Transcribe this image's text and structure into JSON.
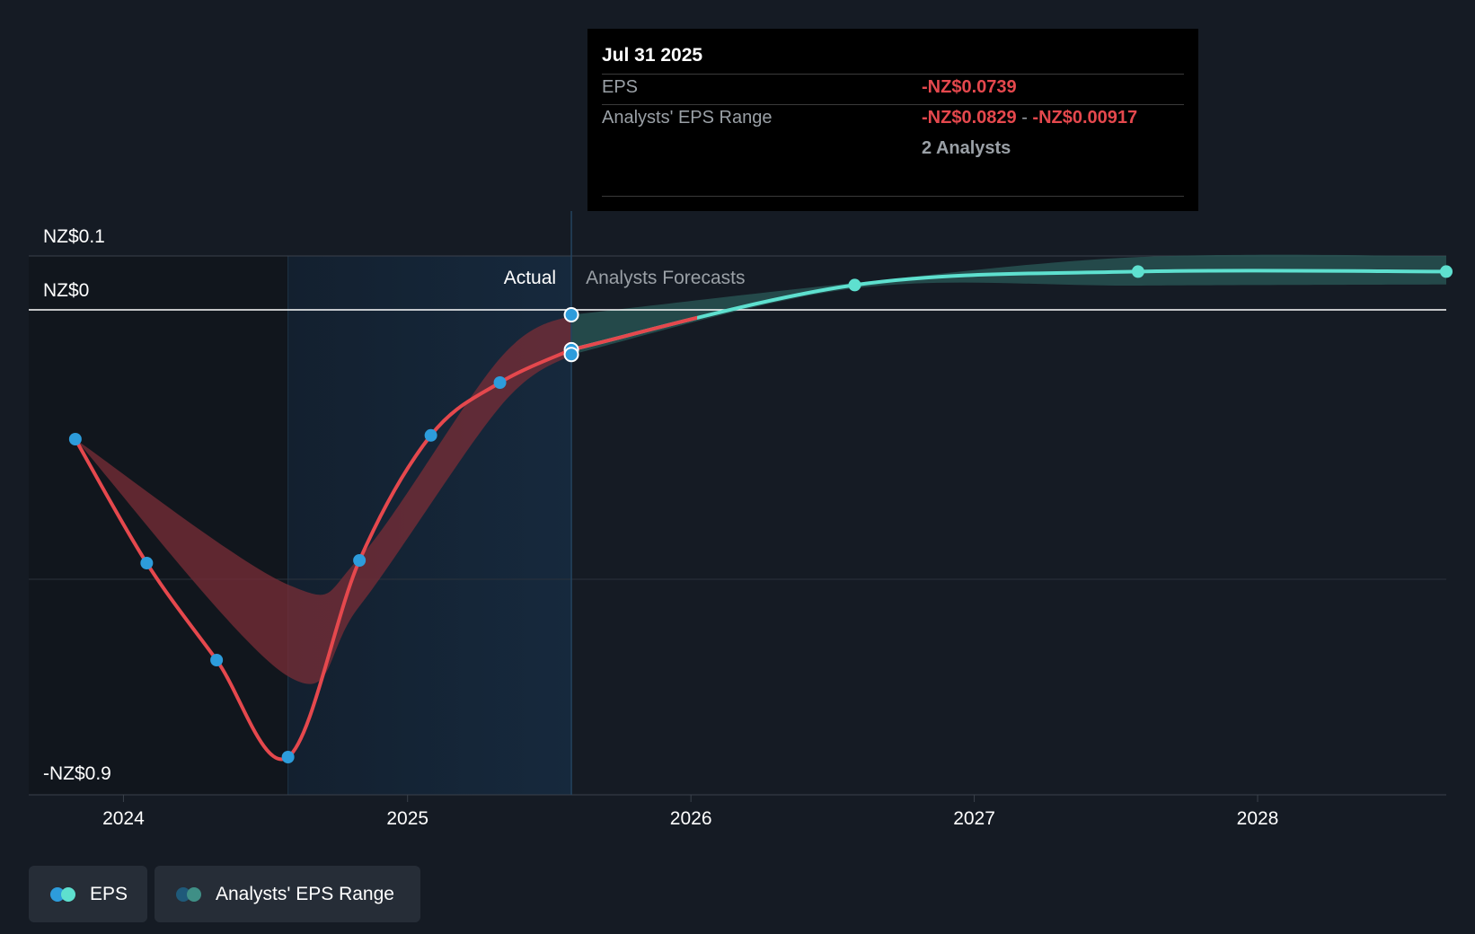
{
  "tooltip": {
    "date": "Jul 31 2025",
    "eps_label": "EPS",
    "eps_value": "-NZ$0.0739",
    "range_label": "Analysts' EPS Range",
    "range_low": "-NZ$0.0829",
    "range_sep": "-",
    "range_high": "-NZ$0.00917",
    "analysts": "2 Analysts"
  },
  "legend": {
    "eps_label": "EPS",
    "range_label": "Analysts' EPS Range"
  },
  "colors": {
    "background": "#151b24",
    "actual": "#e5484d",
    "forecast": "#5ee0cf",
    "point": "#2d9cdb",
    "past_band": "#7a2e37",
    "future_band": "#2a5a57"
  },
  "chart_data": {
    "type": "line",
    "section_labels": {
      "actual": "Actual",
      "forecast": "Analysts Forecasts"
    },
    "y_tick_labels": [
      "NZ$0.1",
      "NZ$0",
      "-NZ$0.9"
    ],
    "y_ticks": [
      0.1,
      0,
      -0.9
    ],
    "ylim": [
      -0.9,
      0.1
    ],
    "x_tick_labels": [
      "2024",
      "2025",
      "2026",
      "2027",
      "2028"
    ],
    "x_ticks": [
      "2024-01-01",
      "2025-01-01",
      "2026-01-01",
      "2027-01-01",
      "2028-01-01"
    ],
    "xlim": [
      "2023-09-01",
      "2028-08-31"
    ],
    "grid": true,
    "legend_position": "bottom-left",
    "hover_date": "2025-07-31",
    "series": [
      {
        "name": "EPS",
        "kind": "actual",
        "points": [
          {
            "x": "2023-10-31",
            "y": -0.24
          },
          {
            "x": "2024-01-31",
            "y": -0.47
          },
          {
            "x": "2024-04-30",
            "y": -0.65
          },
          {
            "x": "2024-07-31",
            "y": -0.83
          },
          {
            "x": "2024-10-31",
            "y": -0.465
          },
          {
            "x": "2025-01-31",
            "y": -0.233
          },
          {
            "x": "2025-04-30",
            "y": -0.135
          },
          {
            "x": "2025-07-31",
            "y": -0.0739
          }
        ]
      },
      {
        "name": "EPS",
        "kind": "forecast",
        "points": [
          {
            "x": "2025-07-31",
            "y": -0.0739
          },
          {
            "x": "2026-07-31",
            "y": 0.046
          },
          {
            "x": "2027-07-31",
            "y": 0.071
          },
          {
            "x": "2028-08-31",
            "y": 0.071
          }
        ]
      },
      {
        "name": "Analysts' EPS Range",
        "kind": "past_range",
        "points": [
          {
            "x": "2023-10-31",
            "low": -0.24,
            "high": -0.24
          },
          {
            "x": "2024-07-31",
            "low": -0.68,
            "high": -0.51
          },
          {
            "x": "2024-10-31",
            "low": -0.55,
            "high": -0.46
          },
          {
            "x": "2025-04-30",
            "low": -0.18,
            "high": -0.09
          },
          {
            "x": "2025-07-31",
            "low": -0.0829,
            "high": -0.00917
          }
        ]
      },
      {
        "name": "Analysts' EPS Range",
        "kind": "future_range",
        "points": [
          {
            "x": "2025-07-31",
            "low": -0.0829,
            "high": -0.00917
          },
          {
            "x": "2026-07-31",
            "low": 0.04,
            "high": 0.05
          },
          {
            "x": "2027-07-31",
            "low": 0.045,
            "high": 0.098
          },
          {
            "x": "2028-08-31",
            "low": 0.047,
            "high": 0.1
          }
        ]
      }
    ],
    "highlight_points": [
      {
        "x": "2025-07-31",
        "y": -0.00917
      },
      {
        "x": "2025-07-31",
        "y": -0.0739
      },
      {
        "x": "2025-07-31",
        "y": -0.0829
      }
    ]
  }
}
